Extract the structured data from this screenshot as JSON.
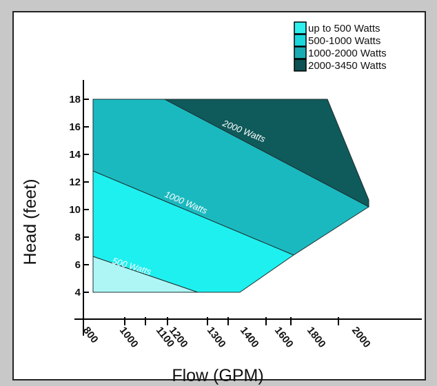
{
  "chart_data": {
    "type": "area",
    "xlabel": "Flow (GPM)",
    "ylabel": "Head (feet)",
    "x_ticks": [
      "800",
      "1000",
      "1100",
      "1200",
      "1300",
      "1400",
      "1600",
      "1800",
      "2000"
    ],
    "y_ticks": [
      "4",
      "6",
      "8",
      "10",
      "12",
      "14",
      "16",
      "18"
    ],
    "ylim": [
      4,
      18
    ],
    "legend": {
      "placement": "top-right",
      "entries": [
        {
          "label": "up to 500 Watts",
          "color": "#2ff0ee"
        },
        {
          "label": "500-1000 Watts",
          "color": "#1ad8dc"
        },
        {
          "label": "1000-2000 Watts",
          "color": "#1aacb2"
        },
        {
          "label": "2000-3450 Watts",
          "color": "#0d5152"
        }
      ]
    },
    "regions": [
      {
        "name": "up to 500 Watts",
        "color": "#aef6f6",
        "polygon": [
          [
            "800",
            4
          ],
          [
            "800",
            6.6
          ],
          [
            "1200",
            4
          ]
        ]
      },
      {
        "name": "500-1000 Watts",
        "color": "#1ef0ef",
        "polygon": [
          [
            "800",
            6.6
          ],
          [
            "800",
            12.8
          ],
          [
            "1600",
            6.7
          ],
          [
            "1300",
            4
          ],
          [
            "1200",
            4
          ]
        ]
      },
      {
        "name": "1000-2000 Watts",
        "color": "#1ab9bf",
        "polygon": [
          [
            "800",
            12.8
          ],
          [
            "800",
            18
          ],
          [
            "1100",
            18
          ],
          [
            "2000",
            10.2
          ],
          [
            "1600",
            6.7
          ]
        ]
      },
      {
        "name": "2000-3450 Watts",
        "color": "#0f5a5b",
        "polygon": [
          [
            "1100",
            18
          ],
          [
            "1800",
            18
          ],
          [
            "2000",
            10.7
          ],
          [
            "2000",
            10.2
          ]
        ]
      }
    ],
    "boundary_labels": [
      {
        "text": "500 Watts",
        "x": "1000",
        "y": 5.6
      },
      {
        "text": "1000 Watts",
        "x": "1200",
        "y": 10.1
      },
      {
        "text": "2000 Watts",
        "x": "1400",
        "y": 15.9
      }
    ]
  }
}
